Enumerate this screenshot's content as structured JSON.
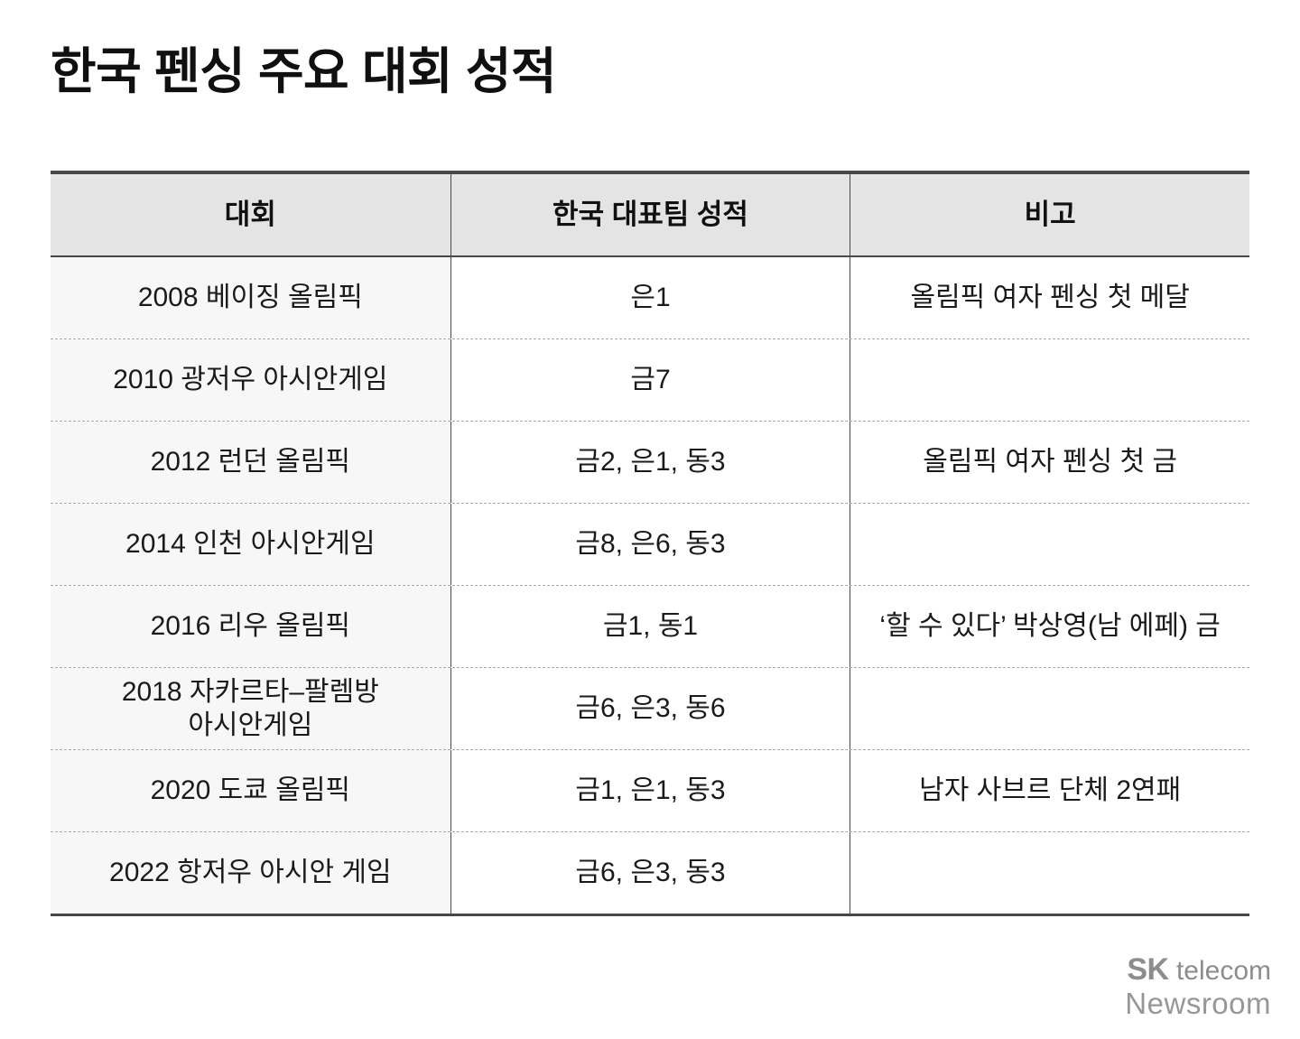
{
  "title": "한국 펜싱 주요 대회 성적",
  "table": {
    "columns": [
      "대회",
      "한국 대표팀 성적",
      "비고"
    ],
    "rows": [
      {
        "event": "2008 베이징 올림픽",
        "result": "은1",
        "note": "올림픽 여자 펜싱 첫 메달"
      },
      {
        "event": "2010 광저우 아시안게임",
        "result": "금7",
        "note": ""
      },
      {
        "event": "2012 런던 올림픽",
        "result": "금2, 은1, 동3",
        "note": "올림픽 여자 펜싱 첫 금"
      },
      {
        "event": "2014 인천 아시안게임",
        "result": "금8, 은6, 동3",
        "note": ""
      },
      {
        "event": "2016 리우 올림픽",
        "result": "금1, 동1",
        "note": "‘할 수 있다’ 박상영(남 에페) 금"
      },
      {
        "event": "2018 자카르타–팔렘방\n아시안게임",
        "result": "금6, 은3, 동6",
        "note": ""
      },
      {
        "event": "2020 도쿄 올림픽",
        "result": "금1, 은1, 동3",
        "note": "남자 사브르 단체 2연패"
      },
      {
        "event": "2022 항저우 아시안 게임",
        "result": "금6, 은3, 동3",
        "note": ""
      }
    ]
  },
  "chart_data": {
    "type": "table",
    "title": "한국 펜싱 주요 대회 성적",
    "columns": [
      "대회",
      "한국 대표팀 성적",
      "비고"
    ],
    "rows": [
      [
        "2008 베이징 올림픽",
        "은1",
        "올림픽 여자 펜싱 첫 메달"
      ],
      [
        "2010 광저우 아시안게임",
        "금7",
        ""
      ],
      [
        "2012 런던 올림픽",
        "금2, 은1, 동3",
        "올림픽 여자 펜싱 첫 금"
      ],
      [
        "2014 인천 아시안게임",
        "금8, 은6, 동3",
        ""
      ],
      [
        "2016 리우 올림픽",
        "금1, 동1",
        "‘할 수 있다’ 박상영(남 에페) 금"
      ],
      [
        "2018 자카르타–팔렘방 아시안게임",
        "금6, 은3, 동6",
        ""
      ],
      [
        "2020 도쿄 올림픽",
        "금1, 은1, 동3",
        "남자 사브르 단체 2연패"
      ],
      [
        "2022 항저우 아시안 게임",
        "금6, 은3, 동3",
        ""
      ]
    ],
    "medal_counts": [
      {
        "event": "2008 베이징 올림픽",
        "gold": 0,
        "silver": 1,
        "bronze": 0
      },
      {
        "event": "2010 광저우 아시안게임",
        "gold": 7,
        "silver": 0,
        "bronze": 0
      },
      {
        "event": "2012 런던 올림픽",
        "gold": 2,
        "silver": 1,
        "bronze": 3
      },
      {
        "event": "2014 인천 아시안게임",
        "gold": 8,
        "silver": 6,
        "bronze": 3
      },
      {
        "event": "2016 리우 올림픽",
        "gold": 1,
        "silver": 0,
        "bronze": 1
      },
      {
        "event": "2018 자카르타–팔렘방 아시안게임",
        "gold": 6,
        "silver": 3,
        "bronze": 6
      },
      {
        "event": "2020 도쿄 올림픽",
        "gold": 1,
        "silver": 1,
        "bronze": 3
      },
      {
        "event": "2022 항저우 아시안 게임",
        "gold": 6,
        "silver": 3,
        "bronze": 3
      }
    ]
  },
  "footer": {
    "brand_sk": "SK",
    "brand_telecom": " telecom",
    "brand_line2": "Newsroom"
  },
  "colors": {
    "header_bg": "#e4e4e4",
    "event_column_bg": "#f7f7f7",
    "border_dark": "#474747",
    "row_divider_dashed": "#aaaaaa",
    "text": "#1a1a1a",
    "brand_gray": "#8d8d8d"
  }
}
